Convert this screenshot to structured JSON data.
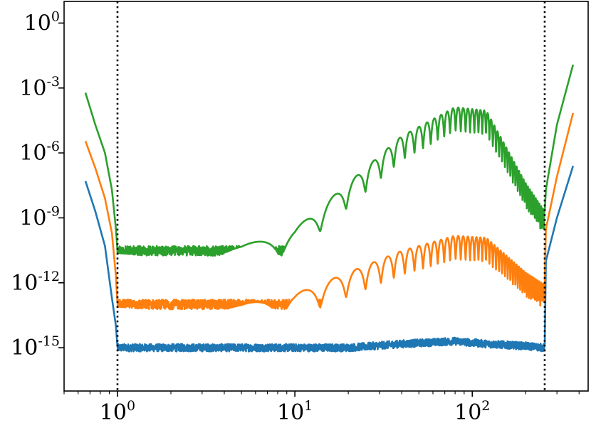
{
  "chart_data": {
    "type": "line",
    "title": "",
    "xlabel": "",
    "ylabel": "",
    "x_scale": "log",
    "y_scale": "log",
    "xlim": [
      0.5,
      450
    ],
    "ylim": [
      1e-17,
      10
    ],
    "grid": false,
    "x_ticks": [
      {
        "base": "10",
        "exp": "0",
        "value": 1
      },
      {
        "base": "10",
        "exp": "1",
        "value": 10
      },
      {
        "base": "10",
        "exp": "2",
        "value": 100
      }
    ],
    "y_ticks": [
      {
        "base": "10",
        "exp": "0",
        "value": 1
      },
      {
        "base": "10",
        "exp": "-3",
        "value": 0.001
      },
      {
        "base": "10",
        "exp": "-6",
        "value": 1e-06
      },
      {
        "base": "10",
        "exp": "-9",
        "value": 1e-09
      },
      {
        "base": "10",
        "exp": "-12",
        "value": 1e-12
      },
      {
        "base": "10",
        "exp": "-15",
        "value": 1e-15
      }
    ],
    "vlines": [
      {
        "x": 1,
        "style": "dotted",
        "color": "#000000"
      },
      {
        "x": 256,
        "style": "dotted",
        "color": "#000000"
      }
    ],
    "x_range_inner": [
      1,
      256
    ],
    "series": [
      {
        "color": "#1f77b4",
        "x": [
          0.66,
          0.75,
          0.85,
          0.93,
          0.98,
          1,
          2,
          5,
          10,
          20,
          40,
          80,
          120,
          200,
          256,
          260,
          300,
          370
        ],
        "y": [
          5e-08,
          2e-09,
          5e-11,
          2e-13,
          1e-14,
          1e-15,
          1e-15,
          1e-15,
          1e-15,
          1e-15,
          1.5e-15,
          2e-15,
          1.5e-15,
          1.2e-15,
          1e-15,
          1e-11,
          1e-09,
          2.5e-07
        ],
        "floor": 1e-15,
        "fringe": false
      },
      {
        "color": "#ff7f0e",
        "x": [
          0.66,
          0.75,
          0.85,
          0.93,
          0.98,
          1,
          2,
          5,
          10,
          20,
          40,
          80,
          120,
          200,
          256,
          260,
          300,
          370
        ],
        "y": [
          3.5e-06,
          2e-07,
          8e-09,
          2e-10,
          2e-12,
          1e-13,
          1e-13,
          1e-13,
          3e-13,
          3e-12,
          3e-11,
          1.5e-10,
          1.2e-10,
          3e-12,
          8e-13,
          3e-10,
          8e-08,
          7e-05
        ],
        "floor": 1e-13,
        "fringe": true
      },
      {
        "color": "#2ca02c",
        "x": [
          0.66,
          0.75,
          0.85,
          0.93,
          0.98,
          1,
          2,
          5,
          10,
          20,
          40,
          80,
          120,
          200,
          256,
          260,
          300,
          370
        ],
        "y": [
          0.0006,
          2e-05,
          1e-06,
          2e-08,
          3e-10,
          3e-11,
          3e-11,
          5e-11,
          3e-10,
          4e-08,
          6e-06,
          0.00013,
          9e-05,
          4e-08,
          2e-09,
          2e-08,
          2e-05,
          0.012
        ],
        "floor": 3e-11,
        "fringe": true
      }
    ]
  }
}
